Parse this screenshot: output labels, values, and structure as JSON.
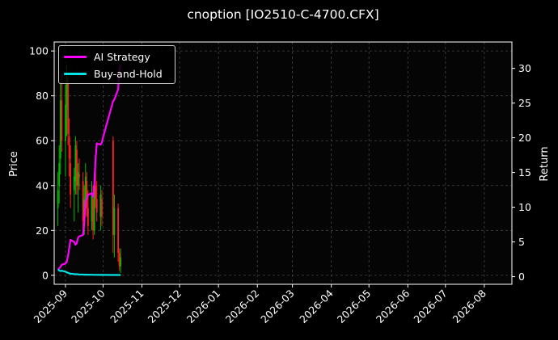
{
  "chart_data": {
    "type": "line",
    "title": "cnoption [IO2510-C-4700.CFX]",
    "ylabel_left": "Price",
    "ylabel_right": "Return",
    "y_left_ticks": [
      0,
      20,
      40,
      60,
      80,
      100
    ],
    "y_left_lim": [
      -4,
      104
    ],
    "y_right_ticks": [
      0,
      5,
      10,
      15,
      20,
      25,
      30
    ],
    "y_right_lim": [
      -1.1,
      33.8
    ],
    "x_ticks": [
      "2025-09",
      "2025-10",
      "2025-11",
      "2025-12",
      "2026-01",
      "2026-02",
      "2026-03",
      "2026-04",
      "2026-05",
      "2026-06",
      "2026-07",
      "2026-08"
    ],
    "grid": true,
    "legend_position": "top-left",
    "colors": {
      "up": "#00bb00",
      "down": "#ff2020",
      "ai": "#ff00ff",
      "bh": "#00e5e5",
      "grid": "#444444"
    },
    "series": [
      {
        "name": "AI Strategy",
        "axis": "right",
        "x": [
          "2025-08-26",
          "2025-08-27",
          "2025-08-28",
          "2025-08-29",
          "2025-09-01",
          "2025-09-02",
          "2025-09-03",
          "2025-09-04",
          "2025-09-05",
          "2025-09-08",
          "2025-09-09",
          "2025-09-10",
          "2025-09-11",
          "2025-09-12",
          "2025-09-15",
          "2025-09-16",
          "2025-09-17",
          "2025-09-18",
          "2025-09-19",
          "2025-09-22",
          "2025-09-23",
          "2025-09-24",
          "2025-09-25",
          "2025-09-26",
          "2025-09-29",
          "2025-09-30",
          "2025-10-01",
          "2025-10-09",
          "2025-10-10",
          "2025-10-13",
          "2025-10-14",
          "2025-10-15"
        ],
        "values": [
          1.0,
          1.2,
          1.4,
          1.7,
          1.9,
          2.1,
          3.0,
          4.1,
          5.3,
          5.0,
          4.6,
          4.8,
          5.6,
          5.8,
          6.0,
          7.8,
          10.8,
          11.2,
          11.8,
          12.0,
          11.5,
          13.2,
          17.0,
          19.2,
          19.0,
          19.3,
          20.1,
          25.3,
          25.5,
          27.0,
          29.8,
          30.5
        ]
      },
      {
        "name": "Buy-and-Hold",
        "axis": "right",
        "x": [
          "2025-08-26",
          "2025-08-27",
          "2025-08-28",
          "2025-08-29",
          "2025-09-01",
          "2025-09-02",
          "2025-09-03",
          "2025-09-04",
          "2025-09-05",
          "2025-09-08",
          "2025-09-10",
          "2025-09-12",
          "2025-09-15",
          "2025-09-17",
          "2025-09-19",
          "2025-09-22",
          "2025-09-24",
          "2025-09-26",
          "2025-09-29",
          "2025-10-01",
          "2025-10-09",
          "2025-10-13",
          "2025-10-15"
        ],
        "values": [
          1.0,
          0.9,
          0.8,
          0.85,
          0.7,
          0.62,
          0.55,
          0.48,
          0.42,
          0.38,
          0.35,
          0.32,
          0.3,
          0.29,
          0.28,
          0.27,
          0.26,
          0.26,
          0.25,
          0.25,
          0.24,
          0.24,
          0.24
        ]
      }
    ],
    "candles": [
      {
        "date": "2025-08-26",
        "open": 30,
        "high": 46,
        "low": 22,
        "close": 38
      },
      {
        "date": "2025-08-27",
        "open": 40,
        "high": 58,
        "low": 32,
        "close": 50
      },
      {
        "date": "2025-08-28",
        "open": 52,
        "high": 86,
        "low": 45,
        "close": 78
      },
      {
        "date": "2025-08-29",
        "open": 78,
        "high": 90,
        "low": 55,
        "close": 60
      },
      {
        "date": "2025-09-01",
        "open": 60,
        "high": 85,
        "low": 44,
        "close": 76
      },
      {
        "date": "2025-09-02",
        "open": 74,
        "high": 94,
        "low": 62,
        "close": 88
      },
      {
        "date": "2025-09-03",
        "open": 86,
        "high": 90,
        "low": 58,
        "close": 63
      },
      {
        "date": "2025-09-04",
        "open": 62,
        "high": 70,
        "low": 44,
        "close": 52
      },
      {
        "date": "2025-09-05",
        "open": 50,
        "high": 58,
        "low": 30,
        "close": 36
      },
      {
        "date": "2025-09-08",
        "open": 38,
        "high": 48,
        "low": 24,
        "close": 44
      },
      {
        "date": "2025-09-09",
        "open": 42,
        "high": 62,
        "low": 36,
        "close": 58
      },
      {
        "date": "2025-09-10",
        "open": 56,
        "high": 60,
        "low": 36,
        "close": 40
      },
      {
        "date": "2025-09-11",
        "open": 40,
        "high": 50,
        "low": 28,
        "close": 46
      },
      {
        "date": "2025-09-12",
        "open": 45,
        "high": 52,
        "low": 38,
        "close": 44
      },
      {
        "date": "2025-09-15",
        "open": 42,
        "high": 46,
        "low": 20,
        "close": 24
      },
      {
        "date": "2025-09-16",
        "open": 26,
        "high": 40,
        "low": 18,
        "close": 34
      },
      {
        "date": "2025-09-17",
        "open": 34,
        "high": 50,
        "low": 28,
        "close": 44
      },
      {
        "date": "2025-09-18",
        "open": 42,
        "high": 46,
        "low": 26,
        "close": 30
      },
      {
        "date": "2025-09-19",
        "open": 30,
        "high": 38,
        "low": 18,
        "close": 22
      },
      {
        "date": "2025-09-22",
        "open": 24,
        "high": 42,
        "low": 20,
        "close": 36
      },
      {
        "date": "2025-09-23",
        "open": 34,
        "high": 40,
        "low": 16,
        "close": 20
      },
      {
        "date": "2025-09-24",
        "open": 20,
        "high": 46,
        "low": 18,
        "close": 40
      },
      {
        "date": "2025-09-25",
        "open": 40,
        "high": 48,
        "low": 30,
        "close": 34
      },
      {
        "date": "2025-09-26",
        "open": 34,
        "high": 42,
        "low": 24,
        "close": 28
      },
      {
        "date": "2025-09-29",
        "open": 26,
        "high": 40,
        "low": 20,
        "close": 36
      },
      {
        "date": "2025-09-30",
        "open": 34,
        "high": 38,
        "low": 22,
        "close": 26
      },
      {
        "date": "2025-10-09",
        "open": 60,
        "high": 62,
        "low": 10,
        "close": 18
      },
      {
        "date": "2025-10-10",
        "open": 18,
        "high": 36,
        "low": 8,
        "close": 30
      },
      {
        "date": "2025-10-13",
        "open": 30,
        "high": 32,
        "low": 6,
        "close": 10
      },
      {
        "date": "2025-10-14",
        "open": 10,
        "high": 12,
        "low": 2,
        "close": 4
      },
      {
        "date": "2025-10-15",
        "open": 4,
        "high": 12,
        "low": 1,
        "close": 8
      }
    ]
  }
}
